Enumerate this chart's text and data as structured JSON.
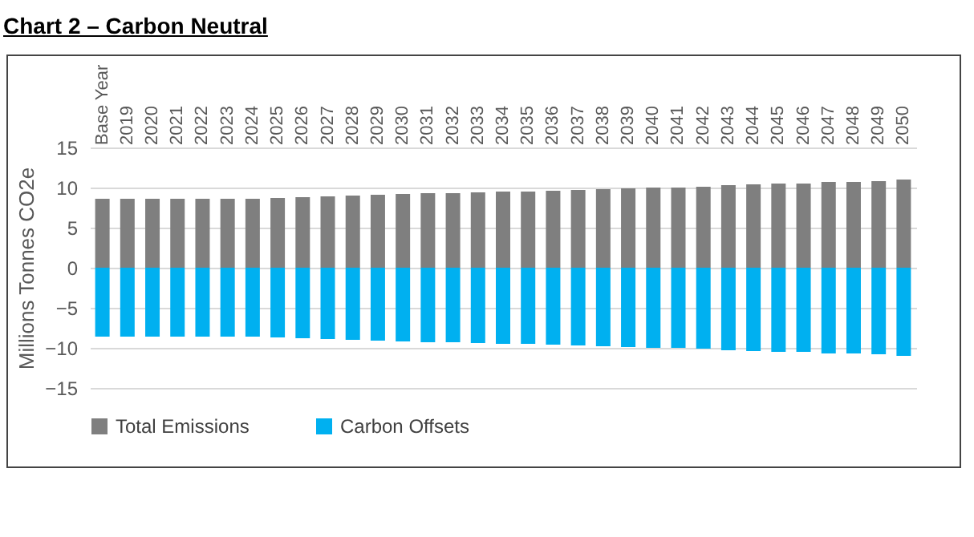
{
  "chart_data": {
    "type": "bar",
    "title": "Chart 2 – Carbon Neutral",
    "ylabel": "Millions Tonnes CO2e",
    "categories": [
      "Base Year",
      "2019",
      "2020",
      "2021",
      "2022",
      "2023",
      "2024",
      "2025",
      "2026",
      "2027",
      "2028",
      "2029",
      "2030",
      "2031",
      "2032",
      "2033",
      "2034",
      "2035",
      "2036",
      "2037",
      "2038",
      "2039",
      "2040",
      "2041",
      "2042",
      "2043",
      "2044",
      "2045",
      "2046",
      "2047",
      "2048",
      "2049",
      "2050"
    ],
    "series": [
      {
        "name": "Total Emissions",
        "color": "#7f7f7f",
        "values": [
          8.6,
          8.6,
          8.6,
          8.6,
          8.6,
          8.6,
          8.6,
          8.7,
          8.8,
          8.9,
          9.0,
          9.1,
          9.2,
          9.3,
          9.3,
          9.4,
          9.5,
          9.5,
          9.6,
          9.7,
          9.8,
          9.9,
          10.0,
          10.0,
          10.1,
          10.3,
          10.4,
          10.5,
          10.5,
          10.7,
          10.7,
          10.8,
          11.0
        ]
      },
      {
        "name": "Carbon Offsets",
        "color": "#00b0f0",
        "values": [
          -8.6,
          -8.6,
          -8.6,
          -8.6,
          -8.6,
          -8.6,
          -8.6,
          -8.7,
          -8.8,
          -8.9,
          -9.0,
          -9.1,
          -9.2,
          -9.3,
          -9.3,
          -9.4,
          -9.5,
          -9.5,
          -9.6,
          -9.7,
          -9.8,
          -9.9,
          -10.0,
          -10.0,
          -10.1,
          -10.3,
          -10.4,
          -10.5,
          -10.5,
          -10.7,
          -10.7,
          -10.8,
          -11.0
        ]
      }
    ],
    "ylim": [
      -15,
      15
    ],
    "yticks": [
      -15,
      -10,
      -5,
      0,
      5,
      10,
      15
    ],
    "grid": "y",
    "legend": "bottom",
    "stacked": true
  }
}
